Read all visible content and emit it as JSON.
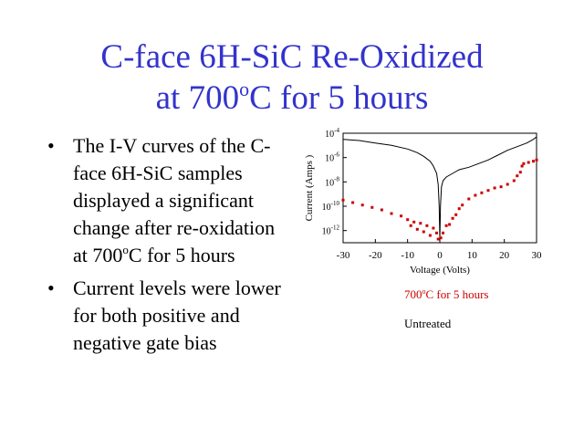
{
  "title": {
    "line1": "C-face 6H-SiC Re-Oxidized",
    "line2_pre": "at 700",
    "line2_sup": "o",
    "line2_post": "C for 5 hours"
  },
  "bullets": [
    {
      "marker": "•",
      "pre": "The I-V curves of the C-face 6H-SiC samples displayed a significant change after re-oxidation at 700",
      "sup": "o",
      "post": "C for 5 hours"
    },
    {
      "marker": "•",
      "text": "Current levels were lower for both positive and negative gate bias"
    }
  ],
  "colors": {
    "title": "#3333cc",
    "treated": "#cc0000",
    "untreated": "#000000"
  },
  "chart_data": {
    "type": "scatter",
    "xlabel": "Voltage   (Volts)",
    "ylabel": "Current   (Amps )",
    "xlim": [
      -30,
      30
    ],
    "ylim": [
      -13,
      -4
    ],
    "y_scale": "log",
    "x_ticks": [
      "-30",
      "-20",
      "-10",
      "0",
      "10",
      "20",
      "30"
    ],
    "y_ticks": [
      {
        "base": "10",
        "exp": "-4",
        "value": -4
      },
      {
        "base": "10",
        "exp": "-6",
        "value": -6
      },
      {
        "base": "10",
        "exp": "-8",
        "value": -8
      },
      {
        "base": "10",
        "exp": "-10",
        "value": -10
      },
      {
        "base": "10",
        "exp": "-12",
        "value": -12
      }
    ],
    "series": [
      {
        "name_pre": "700",
        "name_sup": "o",
        "name_post": "C for 5 hours",
        "color": "#cc0000",
        "style": "points",
        "points": [
          [
            -30,
            -9.5
          ],
          [
            -27,
            -9.7
          ],
          [
            -24,
            -9.9
          ],
          [
            -21,
            -10.1
          ],
          [
            -18,
            -10.3
          ],
          [
            -15,
            -10.6
          ],
          [
            -12,
            -10.8
          ],
          [
            -10,
            -11.1
          ],
          [
            -9,
            -11.6
          ],
          [
            -8,
            -11.3
          ],
          [
            -7,
            -11.9
          ],
          [
            -6,
            -11.4
          ],
          [
            -5,
            -12.1
          ],
          [
            -4,
            -11.6
          ],
          [
            -3,
            -12.4
          ],
          [
            -2,
            -11.8
          ],
          [
            -1,
            -12.2
          ],
          [
            -0.5,
            -12.7
          ],
          [
            0.3,
            -12.6
          ],
          [
            1,
            -12.2
          ],
          [
            2,
            -11.6
          ],
          [
            3,
            -11.5
          ],
          [
            4,
            -11.0
          ],
          [
            5,
            -10.7
          ],
          [
            6,
            -10.2
          ],
          [
            7,
            -9.9
          ],
          [
            9,
            -9.4
          ],
          [
            11,
            -9.1
          ],
          [
            13,
            -8.9
          ],
          [
            15,
            -8.7
          ],
          [
            17,
            -8.5
          ],
          [
            19,
            -8.4
          ],
          [
            21,
            -8.2
          ],
          [
            23,
            -7.9
          ],
          [
            24,
            -7.5
          ],
          [
            25,
            -7.2
          ],
          [
            25.5,
            -6.7
          ],
          [
            26,
            -6.5
          ],
          [
            27.5,
            -6.4
          ],
          [
            29,
            -6.3
          ],
          [
            30,
            -6.2
          ]
        ]
      },
      {
        "name": "Untreated",
        "color": "#000000",
        "style": "line",
        "points": [
          [
            -30,
            -4.5
          ],
          [
            -25,
            -4.6
          ],
          [
            -20,
            -4.8
          ],
          [
            -15,
            -5.0
          ],
          [
            -10,
            -5.3
          ],
          [
            -7,
            -5.6
          ],
          [
            -5,
            -5.9
          ],
          [
            -3,
            -6.3
          ],
          [
            -2,
            -6.7
          ],
          [
            -1,
            -7.3
          ],
          [
            -0.5,
            -8.2
          ],
          [
            -0.2,
            -10
          ],
          [
            0,
            -12.8
          ],
          [
            0.2,
            -10
          ],
          [
            0.5,
            -8.4
          ],
          [
            1,
            -7.9
          ],
          [
            2,
            -7.6
          ],
          [
            4,
            -7.3
          ],
          [
            6,
            -7.0
          ],
          [
            9,
            -6.8
          ],
          [
            12,
            -6.5
          ],
          [
            15,
            -6.2
          ],
          [
            18,
            -5.8
          ],
          [
            21,
            -5.4
          ],
          [
            24,
            -5.1
          ],
          [
            27,
            -4.8
          ],
          [
            29,
            -4.5
          ],
          [
            30,
            -4.3
          ]
        ]
      }
    ]
  }
}
